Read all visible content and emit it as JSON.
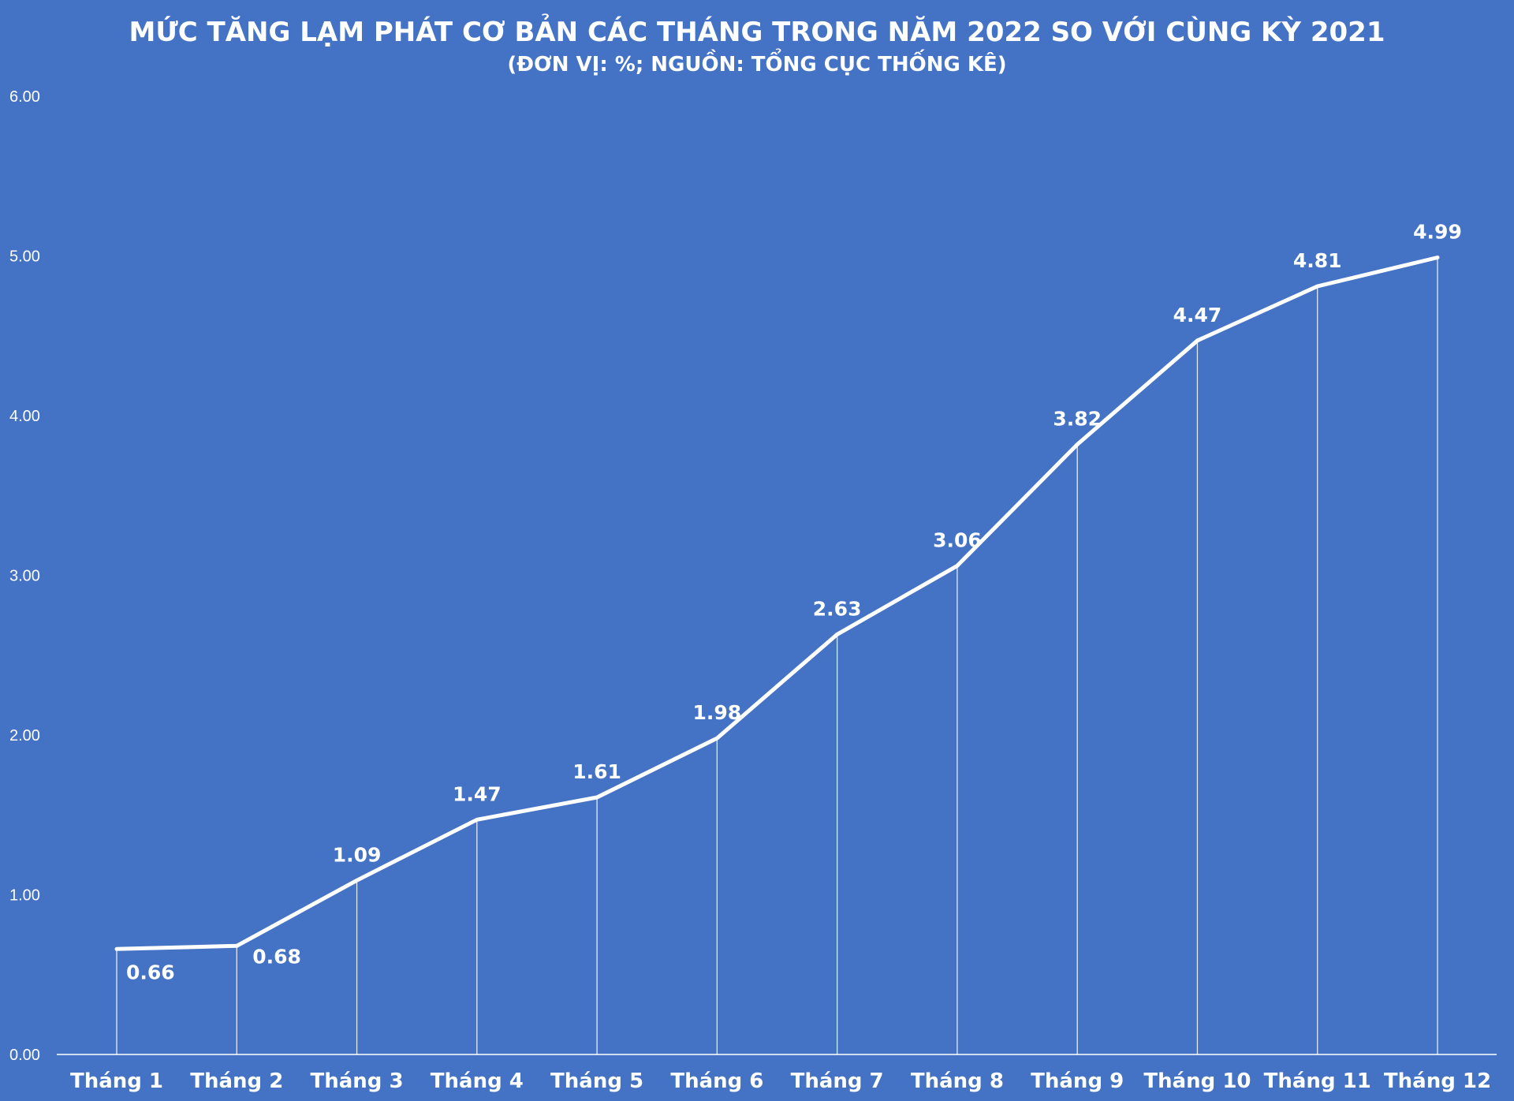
{
  "chart_data": {
    "type": "line",
    "title": "MỨC TĂNG LẠM PHÁT CƠ BẢN CÁC THÁNG TRONG NĂM 2022 SO VỚI CÙNG KỲ 2021",
    "subtitle": "(ĐƠN VỊ: %; NGUỒN: TỔNG CỤC THỐNG KÊ)",
    "categories": [
      "Tháng 1",
      "Tháng 2",
      "Tháng 3",
      "Tháng 4",
      "Tháng 5",
      "Tháng 6",
      "Tháng 7",
      "Tháng 8",
      "Tháng 9",
      "Tháng 10",
      "Tháng 11",
      "Tháng 12"
    ],
    "values": [
      0.66,
      0.68,
      1.09,
      1.47,
      1.61,
      1.98,
      2.63,
      3.06,
      3.82,
      4.47,
      4.81,
      4.99
    ],
    "value_labels": [
      "0.66",
      "0.68",
      "1.09",
      "1.47",
      "1.61",
      "1.98",
      "2.63",
      "3.06",
      "3.82",
      "4.47",
      "4.81",
      "4.99"
    ],
    "ylim": [
      0,
      6
    ],
    "yticks": [
      "0.00",
      "1.00",
      "2.00",
      "3.00",
      "4.00",
      "5.00",
      "6.00"
    ],
    "xlabel": "",
    "ylabel": "",
    "grid": false,
    "drop_lines": true,
    "legend": "none",
    "colors": {
      "background": "#4472C4",
      "line": "#FFFFFF",
      "text": "#FFFFFF"
    }
  }
}
